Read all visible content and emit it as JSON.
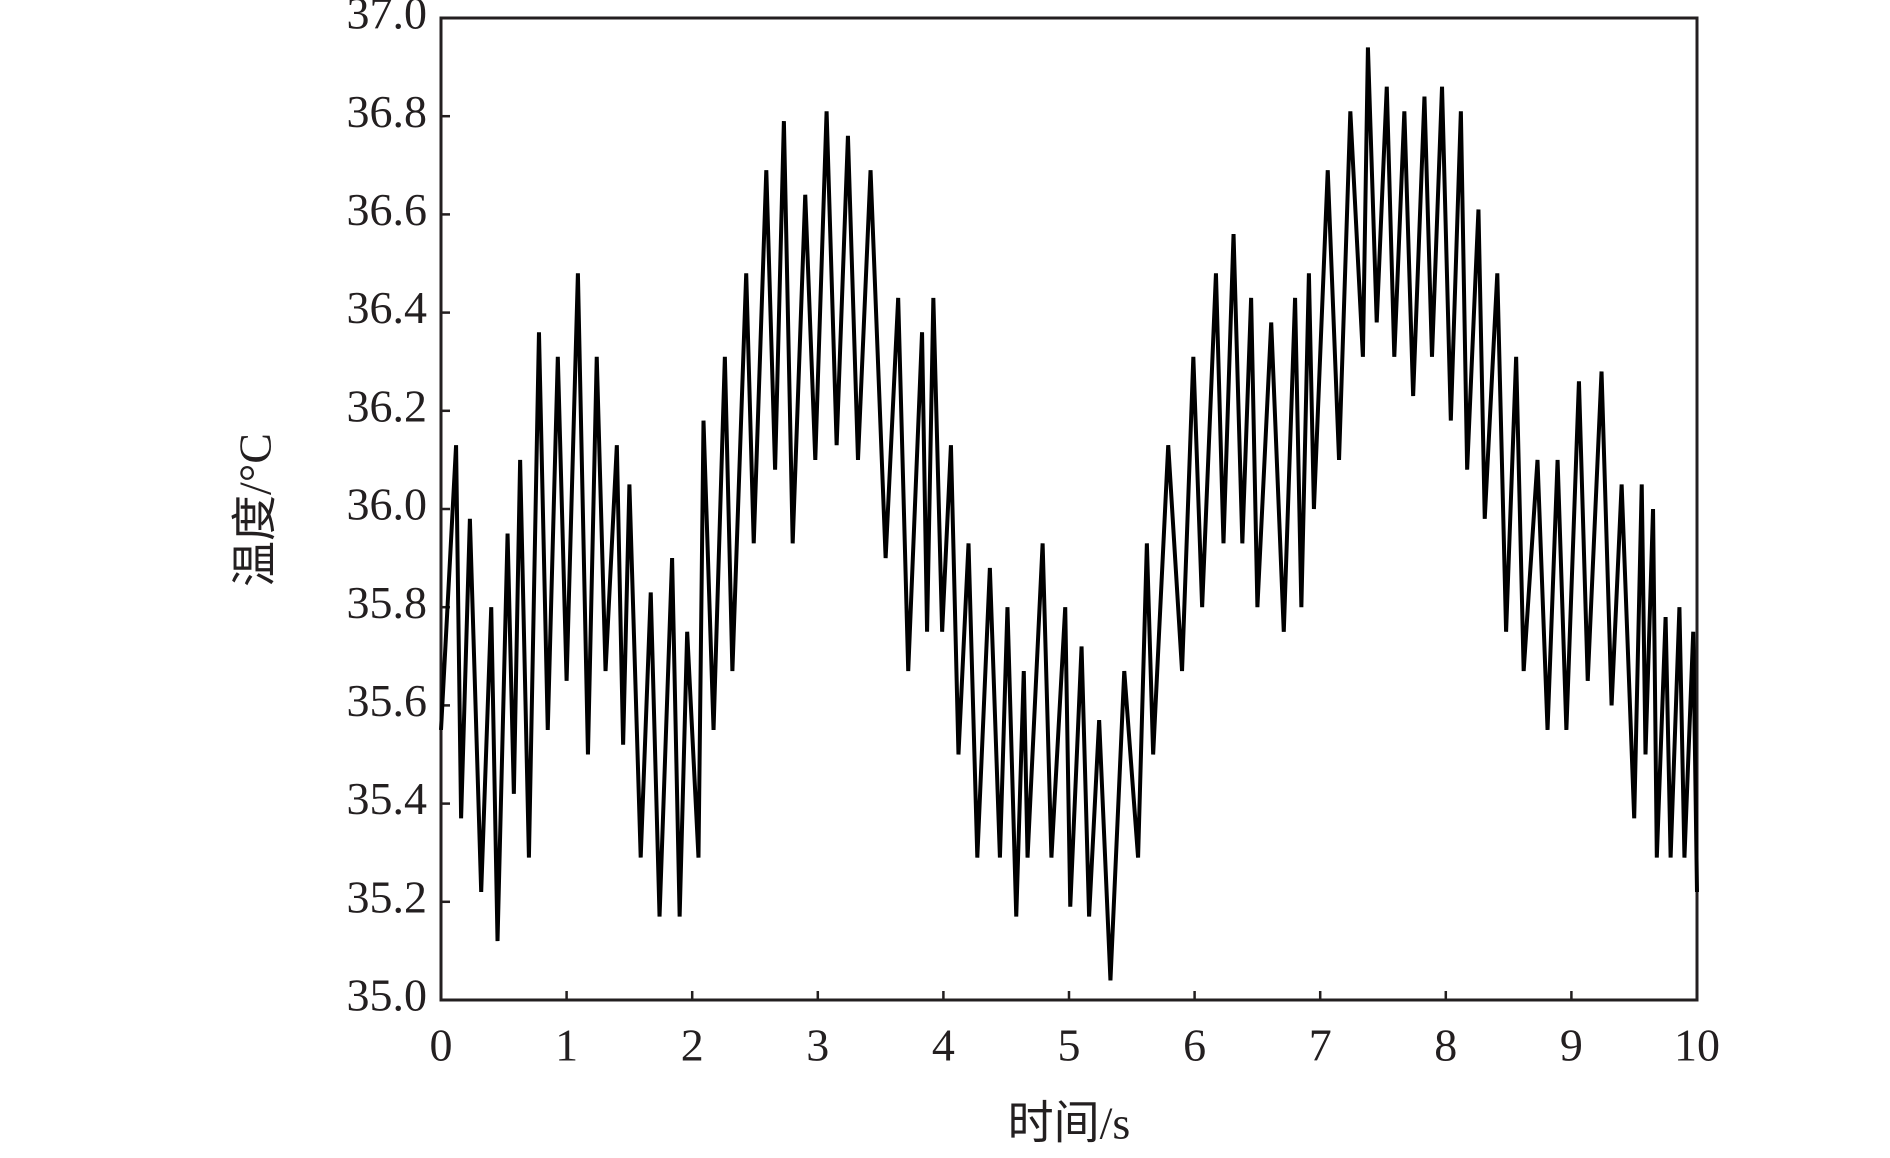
{
  "chart_data": {
    "type": "line",
    "x_label": "时间/s",
    "y_label": "温度/°C",
    "x": [
      0,
      0.12,
      0.16,
      0.23,
      0.32,
      0.4,
      0.45,
      0.53,
      0.58,
      0.63,
      0.7,
      0.78,
      0.85,
      0.93,
      1.0,
      1.09,
      1.17,
      1.24,
      1.31,
      1.4,
      1.45,
      1.5,
      1.59,
      1.67,
      1.74,
      1.84,
      1.9,
      1.96,
      2.05,
      2.09,
      2.17,
      2.26,
      2.32,
      2.43,
      2.49,
      2.59,
      2.66,
      2.73,
      2.8,
      2.9,
      2.98,
      3.07,
      3.15,
      3.24,
      3.32,
      3.42,
      3.54,
      3.64,
      3.72,
      3.83,
      3.87,
      3.92,
      3.99,
      4.06,
      4.12,
      4.2,
      4.27,
      4.37,
      4.45,
      4.51,
      4.58,
      4.64,
      4.67,
      4.79,
      4.86,
      4.97,
      5.01,
      5.1,
      5.16,
      5.24,
      5.33,
      5.44,
      5.55,
      5.62,
      5.67,
      5.79,
      5.9,
      5.99,
      6.06,
      6.17,
      6.23,
      6.31,
      6.38,
      6.45,
      6.5,
      6.61,
      6.71,
      6.8,
      6.85,
      6.91,
      6.95,
      7.06,
      7.15,
      7.24,
      7.34,
      7.38,
      7.45,
      7.53,
      7.59,
      7.67,
      7.74,
      7.83,
      7.89,
      7.97,
      8.04,
      8.12,
      8.17,
      8.26,
      8.31,
      8.41,
      8.48,
      8.56,
      8.62,
      8.73,
      8.81,
      8.89,
      8.96,
      9.06,
      9.13,
      9.24,
      9.32,
      9.4,
      9.5,
      9.56,
      9.59,
      9.65,
      9.68,
      9.75,
      9.79,
      9.86,
      9.9,
      9.97,
      10.0
    ],
    "series": [
      {
        "color": "#000000",
        "values": [
          35.55,
          36.13,
          35.37,
          35.98,
          35.22,
          35.8,
          35.12,
          35.95,
          35.42,
          36.1,
          35.29,
          36.36,
          35.55,
          36.31,
          35.65,
          36.48,
          35.5,
          36.31,
          35.67,
          36.13,
          35.52,
          36.05,
          35.29,
          35.83,
          35.17,
          35.9,
          35.17,
          35.75,
          35.29,
          36.18,
          35.55,
          36.31,
          35.67,
          36.48,
          35.93,
          36.69,
          36.08,
          36.79,
          35.93,
          36.64,
          36.1,
          36.81,
          36.13,
          36.76,
          36.1,
          36.69,
          35.9,
          36.43,
          35.67,
          36.36,
          35.75,
          36.43,
          35.75,
          36.13,
          35.5,
          35.93,
          35.29,
          35.88,
          35.29,
          35.8,
          35.17,
          35.67,
          35.29,
          35.93,
          35.29,
          35.8,
          35.19,
          35.72,
          35.17,
          35.57,
          35.04,
          35.67,
          35.29,
          35.93,
          35.5,
          36.13,
          35.67,
          36.31,
          35.8,
          36.48,
          35.93,
          36.56,
          35.93,
          36.43,
          35.8,
          36.38,
          35.75,
          36.43,
          35.8,
          36.48,
          36.0,
          36.69,
          36.1,
          36.81,
          36.31,
          36.94,
          36.38,
          36.86,
          36.31,
          36.81,
          36.23,
          36.84,
          36.31,
          36.86,
          36.18,
          36.81,
          36.08,
          36.61,
          35.98,
          36.48,
          35.75,
          36.31,
          35.67,
          36.1,
          35.55,
          36.1,
          35.55,
          36.26,
          35.65,
          36.28,
          35.6,
          36.05,
          35.37,
          36.05,
          35.5,
          36.0,
          35.29,
          35.78,
          35.29,
          35.8,
          35.29,
          35.75,
          35.22
        ]
      }
    ],
    "xlim": [
      0,
      10
    ],
    "xticks": [
      0,
      1,
      2,
      3,
      4,
      5,
      6,
      7,
      8,
      9,
      10
    ],
    "ylim": [
      35,
      37
    ],
    "yticks": [
      {
        "value": 35,
        "label": "35.0"
      },
      35.2,
      35.4,
      35.6,
      35.8,
      {
        "value": 36,
        "label": "36.0"
      },
      36.2,
      36.4,
      36.6,
      36.8,
      {
        "value": 37,
        "label": "37.0"
      }
    ],
    "grid": false
  }
}
